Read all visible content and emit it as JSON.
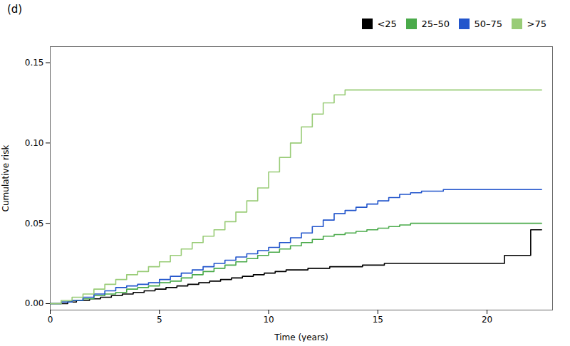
{
  "chart_data": {
    "type": "step",
    "title": "(d)",
    "xlabel": "Time (years)",
    "ylabel": "Cumulative risk",
    "xlim": [
      0,
      23
    ],
    "ylim": [
      -0.004,
      0.16
    ],
    "xticks": [
      0,
      5,
      10,
      15,
      20
    ],
    "yticks": [
      {
        "value": 0.0,
        "label": "0.00"
      },
      {
        "value": 0.05,
        "label": "0.05"
      },
      {
        "value": 0.1,
        "label": "0.10"
      },
      {
        "value": 0.15,
        "label": "0.15"
      }
    ],
    "legend": "upper right",
    "series": [
      {
        "name": "<25",
        "color": "#000000",
        "x": [
          0,
          0.3,
          0.8,
          1.2,
          1.8,
          2.3,
          2.8,
          3.3,
          3.8,
          4.3,
          4.8,
          5.3,
          5.8,
          6.3,
          6.8,
          7.3,
          7.8,
          8.3,
          8.8,
          9.3,
          9.8,
          10.3,
          10.8,
          11.3,
          11.8,
          12.3,
          12.8,
          13.3,
          13.8,
          14.3,
          14.8,
          15.3,
          15.8,
          16.3,
          16.8,
          17.3,
          17.8,
          18.3,
          18.8,
          19.3,
          19.8,
          20.8,
          21.3,
          22.0,
          22.5
        ],
        "values": [
          0,
          0.0,
          0.001,
          0.002,
          0.003,
          0.004,
          0.005,
          0.006,
          0.007,
          0.008,
          0.009,
          0.01,
          0.011,
          0.012,
          0.013,
          0.014,
          0.015,
          0.016,
          0.017,
          0.018,
          0.019,
          0.02,
          0.021,
          0.021,
          0.022,
          0.022,
          0.023,
          0.023,
          0.023,
          0.024,
          0.024,
          0.025,
          0.025,
          0.025,
          0.025,
          0.025,
          0.025,
          0.025,
          0.025,
          0.025,
          0.025,
          0.03,
          0.03,
          0.046,
          0.046
        ]
      },
      {
        "name": "25–50",
        "color": "#4aaa4a",
        "x": [
          0,
          0.5,
          1.0,
          1.5,
          2.0,
          2.5,
          3.0,
          3.5,
          4.0,
          4.5,
          5.0,
          5.5,
          6.0,
          6.5,
          7.0,
          7.5,
          8.0,
          8.5,
          9.0,
          9.5,
          10.0,
          10.5,
          11.0,
          11.5,
          12.0,
          12.5,
          13.0,
          13.5,
          14.0,
          14.5,
          15.0,
          15.5,
          16.0,
          16.5,
          17.0,
          17.5,
          22.5
        ],
        "values": [
          0,
          0.001,
          0.002,
          0.003,
          0.005,
          0.006,
          0.007,
          0.009,
          0.01,
          0.011,
          0.013,
          0.014,
          0.016,
          0.018,
          0.02,
          0.022,
          0.024,
          0.026,
          0.028,
          0.03,
          0.032,
          0.034,
          0.036,
          0.038,
          0.04,
          0.042,
          0.043,
          0.044,
          0.045,
          0.046,
          0.047,
          0.048,
          0.049,
          0.05,
          0.05,
          0.05,
          0.05
        ]
      },
      {
        "name": "50–75",
        "color": "#2255cc",
        "x": [
          0,
          0.5,
          1.0,
          1.5,
          2.0,
          2.5,
          3.0,
          3.5,
          4.0,
          4.5,
          5.0,
          5.5,
          6.0,
          6.5,
          7.0,
          7.5,
          8.0,
          8.5,
          9.0,
          9.5,
          10.0,
          10.5,
          11.0,
          11.5,
          12.0,
          12.5,
          13.0,
          13.5,
          14.0,
          14.5,
          15.0,
          15.5,
          16.0,
          16.5,
          17.0,
          17.5,
          18.0,
          22.5
        ],
        "values": [
          0,
          0.001,
          0.002,
          0.004,
          0.006,
          0.008,
          0.01,
          0.011,
          0.012,
          0.013,
          0.015,
          0.017,
          0.019,
          0.021,
          0.023,
          0.025,
          0.027,
          0.029,
          0.031,
          0.033,
          0.035,
          0.038,
          0.041,
          0.044,
          0.048,
          0.052,
          0.056,
          0.058,
          0.06,
          0.062,
          0.064,
          0.066,
          0.068,
          0.069,
          0.07,
          0.07,
          0.071,
          0.071
        ]
      },
      {
        "name": ">75",
        "color": "#99cc77",
        "x": [
          0,
          0.5,
          1.0,
          1.5,
          2.0,
          2.5,
          3.0,
          3.5,
          4.0,
          4.5,
          5.0,
          5.5,
          6.0,
          6.5,
          7.0,
          7.5,
          8.0,
          8.5,
          9.0,
          9.5,
          10.0,
          10.5,
          11.0,
          11.5,
          12.0,
          12.5,
          13.0,
          13.5,
          14.0,
          14.5,
          15.0,
          15.5,
          16.0,
          16.5,
          17.0,
          17.5,
          22.5
        ],
        "values": [
          0,
          0.002,
          0.004,
          0.006,
          0.009,
          0.012,
          0.015,
          0.018,
          0.02,
          0.023,
          0.026,
          0.03,
          0.034,
          0.038,
          0.042,
          0.046,
          0.051,
          0.057,
          0.064,
          0.072,
          0.082,
          0.091,
          0.1,
          0.11,
          0.118,
          0.125,
          0.13,
          0.133,
          0.133,
          0.133,
          0.133,
          0.133,
          0.133,
          0.133,
          0.133,
          0.133,
          0.133
        ]
      }
    ]
  }
}
